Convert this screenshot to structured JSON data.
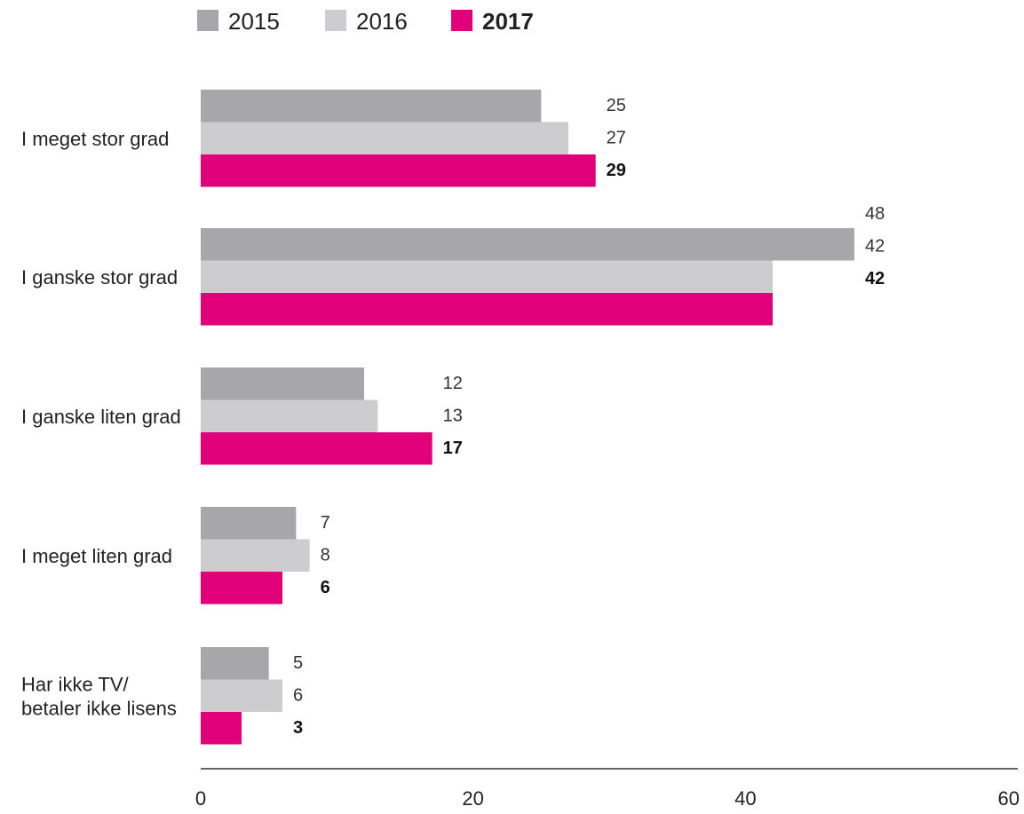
{
  "chart_data": {
    "type": "bar",
    "orientation": "horizontal",
    "title": "",
    "xlabel": "",
    "ylabel": "",
    "xlim": [
      0,
      60
    ],
    "ticks": [
      0,
      20,
      40,
      60
    ],
    "grid": false,
    "legend_position": "top-left",
    "categories": [
      [
        "I meget stor grad"
      ],
      [
        "I ganske stor grad"
      ],
      [
        "I ganske liten grad"
      ],
      [
        "I meget liten grad"
      ],
      [
        "Har ikke TV/",
        "betaler ikke lisens"
      ]
    ],
    "series": [
      {
        "name": "2015",
        "color": "#a7a6a9",
        "highlight": false,
        "values": [
          25,
          48,
          12,
          7,
          5
        ]
      },
      {
        "name": "2016",
        "color": "#cdcccf",
        "highlight": false,
        "values": [
          27,
          42,
          13,
          8,
          6
        ]
      },
      {
        "name": "2017",
        "color": "#e2007a",
        "highlight": true,
        "values": [
          29,
          42,
          17,
          6,
          3
        ]
      }
    ]
  }
}
